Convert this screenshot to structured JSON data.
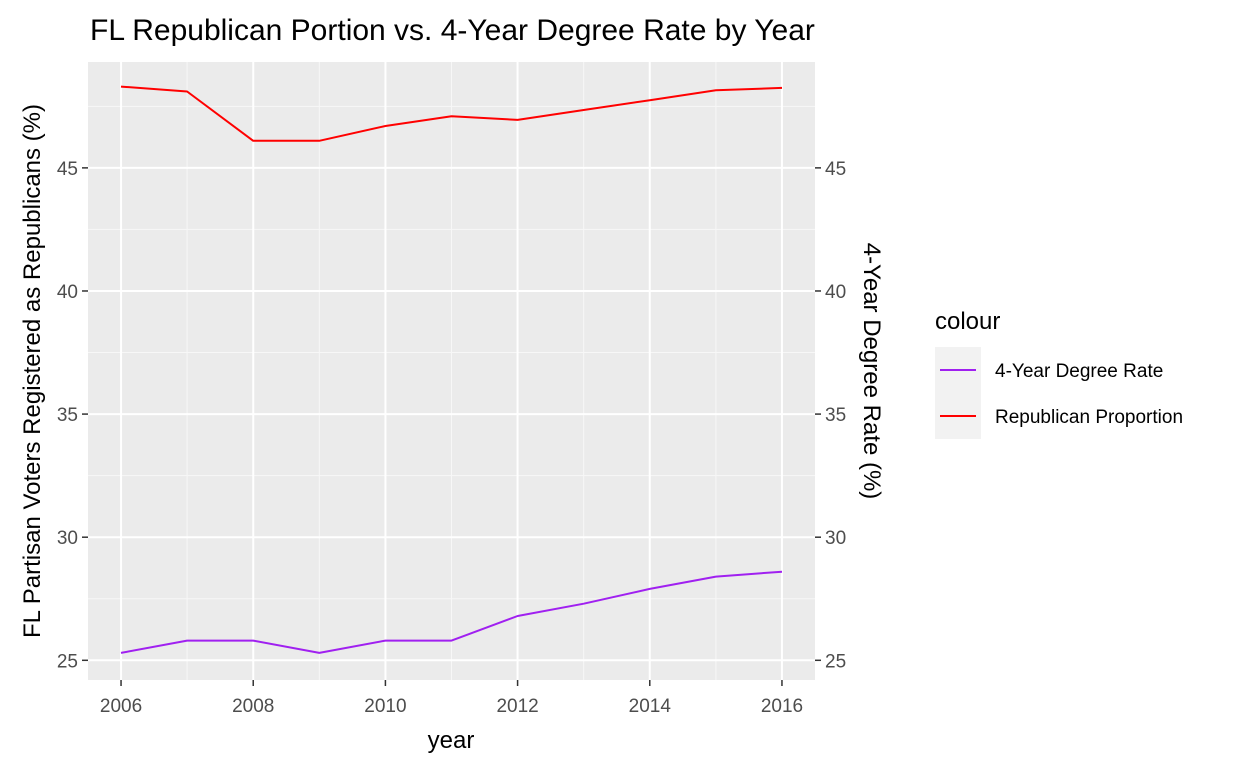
{
  "chart_data": {
    "type": "line",
    "title": "FL Republican Portion vs. 4-Year Degree Rate by Year",
    "xlabel": "year",
    "ylabel": "FL Partisan Voters Registered as Republicans (%)",
    "y2label": "4-Year Degree Rate (%)",
    "xlim": [
      2005.5,
      2016.5
    ],
    "ylim": [
      24.2,
      49.3
    ],
    "x_ticks": [
      2006,
      2008,
      2010,
      2012,
      2014,
      2016
    ],
    "y_ticks": [
      25,
      30,
      35,
      40,
      45
    ],
    "y2_ticks": [
      25,
      30,
      35,
      40,
      45
    ],
    "grid": true,
    "legend_position": "right",
    "legend_title": "colour",
    "panel_color": "#ebebeb",
    "series": [
      {
        "name": "4-Year Degree Rate",
        "color": "#a020f0",
        "x": [
          2006,
          2007,
          2008,
          2009,
          2010,
          2011,
          2012,
          2013,
          2014,
          2015,
          2016
        ],
        "values": [
          25.3,
          25.8,
          25.8,
          25.3,
          25.8,
          25.8,
          26.8,
          27.3,
          27.9,
          28.4,
          28.6
        ]
      },
      {
        "name": "Republican Proportion",
        "color": "#ff0000",
        "x": [
          2006,
          2007,
          2008,
          2009,
          2010,
          2011,
          2012,
          2013,
          2014,
          2015,
          2016
        ],
        "values": [
          48.3,
          48.1,
          46.1,
          46.1,
          46.7,
          47.1,
          46.95,
          47.35,
          47.75,
          48.15,
          48.25
        ]
      }
    ]
  }
}
